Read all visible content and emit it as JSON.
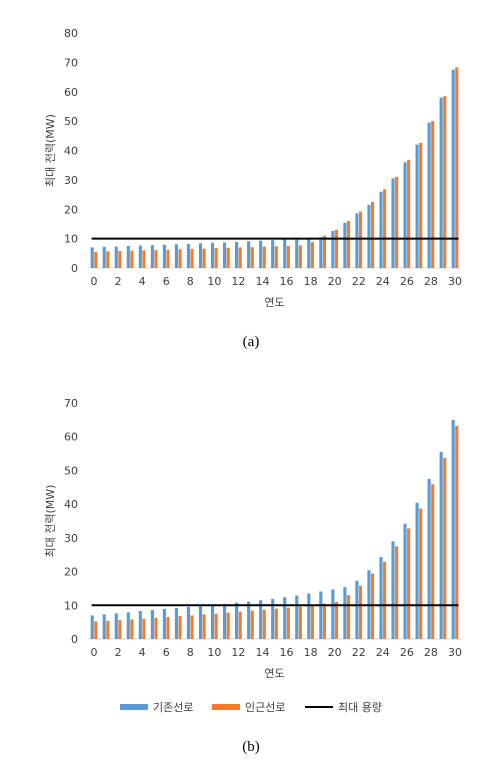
{
  "colors": {
    "existing": "#5B9BD5",
    "adjacent": "#ED7D31",
    "capacity": "#000000"
  },
  "legend": {
    "existing": "기존선로",
    "adjacent": "인근선로",
    "capacity": "최대 용량"
  },
  "chart_data": [
    {
      "type": "bar",
      "caption": "(a)",
      "xlabel": "연도",
      "ylabel": "최대 전력(MW)",
      "ylim": [
        0,
        80
      ],
      "yticks": [
        0,
        10,
        20,
        30,
        40,
        50,
        60,
        70,
        80
      ],
      "xticks": [
        0,
        2,
        4,
        6,
        8,
        10,
        12,
        14,
        16,
        18,
        20,
        22,
        24,
        26,
        28,
        30
      ],
      "categories": [
        0,
        1,
        2,
        3,
        4,
        5,
        6,
        7,
        8,
        9,
        10,
        11,
        12,
        13,
        14,
        15,
        16,
        17,
        18,
        19,
        20,
        21,
        22,
        23,
        24,
        25,
        26,
        27,
        28,
        29,
        30
      ],
      "capacity": 10,
      "series": [
        {
          "name": "기존선로",
          "values": [
            7.0,
            7.2,
            7.3,
            7.5,
            7.6,
            7.8,
            7.9,
            8.1,
            8.2,
            8.4,
            8.6,
            8.7,
            8.9,
            9.1,
            9.3,
            9.5,
            9.7,
            9.9,
            10.1,
            10.5,
            12.6,
            15.4,
            18.6,
            21.5,
            26.0,
            30.5,
            36.0,
            42.0,
            49.5,
            58.0,
            67.5
          ]
        },
        {
          "name": "인근선로",
          "values": [
            5.5,
            5.7,
            5.8,
            5.9,
            6.0,
            6.1,
            6.2,
            6.4,
            6.5,
            6.6,
            6.8,
            6.9,
            7.0,
            7.1,
            7.3,
            7.4,
            7.5,
            7.7,
            8.8,
            11.0,
            13.0,
            16.0,
            19.2,
            22.5,
            26.8,
            31.0,
            36.8,
            42.6,
            50.0,
            58.5,
            68.3
          ]
        }
      ]
    },
    {
      "type": "bar",
      "caption": "(b)",
      "xlabel": "연도",
      "ylabel": "최대 전력(MW)",
      "ylim": [
        0,
        70
      ],
      "yticks": [
        0,
        10,
        20,
        30,
        40,
        50,
        60,
        70
      ],
      "xticks": [
        0,
        2,
        4,
        6,
        8,
        10,
        12,
        14,
        16,
        18,
        20,
        22,
        24,
        26,
        28,
        30
      ],
      "categories": [
        0,
        1,
        2,
        3,
        4,
        5,
        6,
        7,
        8,
        9,
        10,
        11,
        12,
        13,
        14,
        15,
        16,
        17,
        18,
        19,
        20,
        21,
        22,
        23,
        24,
        25,
        26,
        27,
        28,
        29,
        30
      ],
      "capacity": 10,
      "series": [
        {
          "name": "기존선로",
          "values": [
            7.0,
            7.3,
            7.6,
            7.9,
            8.3,
            8.6,
            8.9,
            9.2,
            9.5,
            9.8,
            10.1,
            10.4,
            10.8,
            11.1,
            11.5,
            11.9,
            12.4,
            12.9,
            13.5,
            14.1,
            14.7,
            15.4,
            17.3,
            20.4,
            24.3,
            29.0,
            34.2,
            40.4,
            47.5,
            55.5,
            65.0
          ]
        },
        {
          "name": "인근선로",
          "values": [
            5.2,
            5.4,
            5.6,
            5.8,
            6.0,
            6.3,
            6.5,
            6.8,
            7.0,
            7.3,
            7.5,
            7.8,
            8.1,
            8.4,
            8.7,
            9.0,
            9.3,
            9.6,
            10.0,
            10.5,
            11.0,
            13.0,
            15.8,
            19.4,
            22.9,
            27.5,
            32.8,
            38.7,
            45.9,
            53.7,
            63.2
          ]
        }
      ]
    }
  ]
}
